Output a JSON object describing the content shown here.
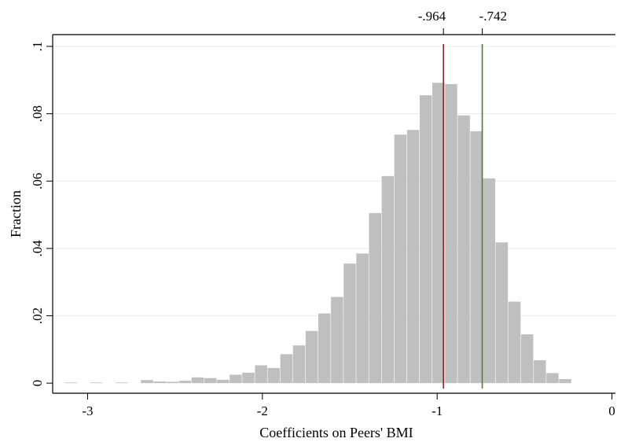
{
  "chart_data": {
    "type": "bar",
    "title": "",
    "xlabel": "Coefficients on Peers' BMI",
    "ylabel": "Fraction",
    "xlim": [
      -3.2,
      0.02
    ],
    "ylim": [
      -0.003,
      0.1035
    ],
    "grid": true,
    "bar_color": "#bfbfbf",
    "bin_width": 0.0725,
    "bin_starts": [
      -3.13,
      -3.0575,
      -2.985,
      -2.9125,
      -2.84,
      -2.7675,
      -2.695,
      -2.6225,
      -2.55,
      -2.4775,
      -2.405,
      -2.3325,
      -2.26,
      -2.1875,
      -2.115,
      -2.0425,
      -1.97,
      -1.8975,
      -1.825,
      -1.7525,
      -1.68,
      -1.6075,
      -1.535,
      -1.4625,
      -1.39,
      -1.3175,
      -1.245,
      -1.1725,
      -1.1,
      -1.0275,
      -0.955,
      -0.8825,
      -0.81,
      -0.7375,
      -0.665,
      -0.5925,
      -0.52,
      -0.4475,
      -0.375,
      -0.3025,
      -0.23,
      -0.1575
    ],
    "values": [
      0.0002,
      0.0,
      0.0002,
      0.0,
      0.0002,
      0.0,
      0.0009,
      0.0005,
      0.0004,
      0.0007,
      0.0017,
      0.0015,
      0.001,
      0.0025,
      0.0031,
      0.0053,
      0.0045,
      0.0086,
      0.0112,
      0.0155,
      0.0207,
      0.0256,
      0.0355,
      0.0385,
      0.0505,
      0.0615,
      0.0738,
      0.0752,
      0.0855,
      0.0892,
      0.0888,
      0.0795,
      0.0748,
      0.0608,
      0.0418,
      0.0242,
      0.0145,
      0.0068,
      0.003,
      0.0012,
      0.0,
      0.0
    ],
    "reference_lines": [
      {
        "x": -0.964,
        "label": "-.964",
        "color": "#8b2a2a"
      },
      {
        "x": -0.742,
        "label": "-.742",
        "color": "#4a7f2a"
      }
    ],
    "x_ticks": [
      {
        "value": -3,
        "label": "-3"
      },
      {
        "value": -2,
        "label": "-2"
      },
      {
        "value": -1,
        "label": "-1"
      },
      {
        "value": 0,
        "label": "0"
      }
    ],
    "y_ticks": [
      {
        "value": 0,
        "label": "0"
      },
      {
        "value": 0.02,
        "label": ".02"
      },
      {
        "value": 0.04,
        "label": ".04"
      },
      {
        "value": 0.06,
        "label": ".06"
      },
      {
        "value": 0.08,
        "label": ".08"
      },
      {
        "value": 0.1,
        "label": ".1"
      }
    ]
  }
}
